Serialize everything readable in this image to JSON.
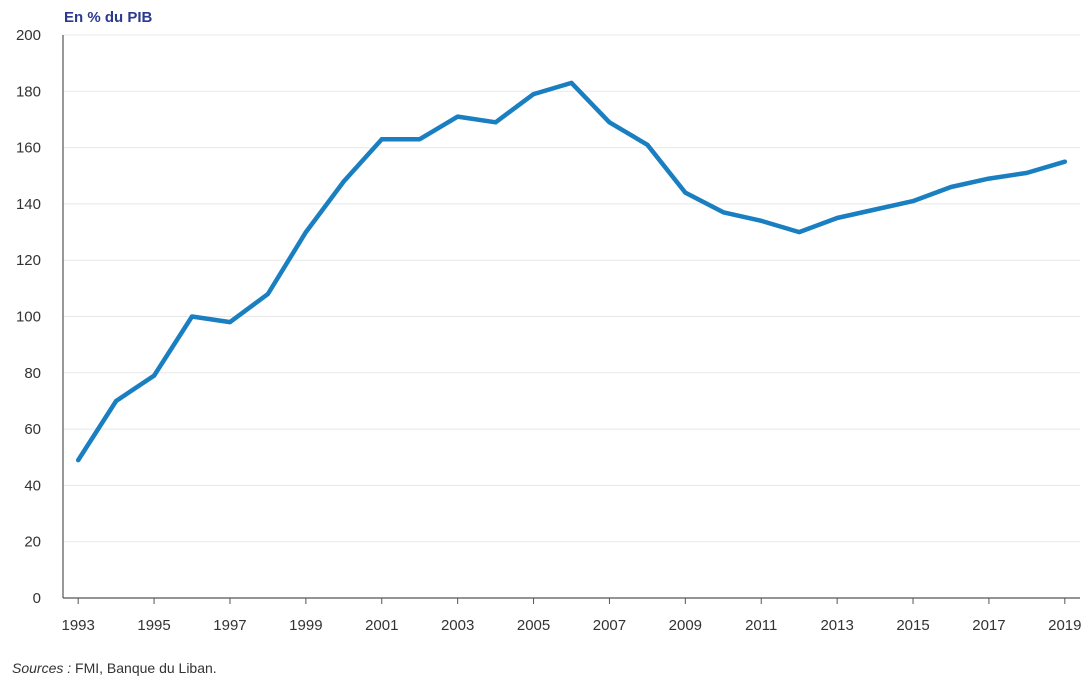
{
  "chart_data": {
    "type": "line",
    "title": "",
    "ylabel": "En % du PIB",
    "xlabel": "",
    "ylim": [
      0,
      200
    ],
    "yticks": [
      0,
      20,
      40,
      60,
      80,
      100,
      120,
      140,
      160,
      180,
      200
    ],
    "xlim": [
      1992.6,
      2019.4
    ],
    "xticks": [
      1993,
      1995,
      1997,
      1999,
      2001,
      2003,
      2005,
      2007,
      2009,
      2011,
      2013,
      2015,
      2017,
      2019
    ],
    "grid": true,
    "legend": "none",
    "series": [
      {
        "name": "",
        "color": "#1a7fc1",
        "x": [
          1993,
          1994,
          1995,
          1996,
          1997,
          1998,
          1999,
          2000,
          2001,
          2002,
          2003,
          2004,
          2005,
          2006,
          2007,
          2008,
          2009,
          2010,
          2011,
          2012,
          2013,
          2014,
          2015,
          2016,
          2017,
          2018,
          2019
        ],
        "y": [
          49,
          70,
          79,
          100,
          98,
          108,
          130,
          148,
          163,
          163,
          171,
          169,
          179,
          183,
          169,
          161,
          144,
          137,
          134,
          130,
          135,
          138,
          141,
          146,
          149,
          151,
          155
        ]
      }
    ]
  },
  "source": {
    "prefix": "Sources :",
    "text": "FMI, Banque du Liban."
  }
}
